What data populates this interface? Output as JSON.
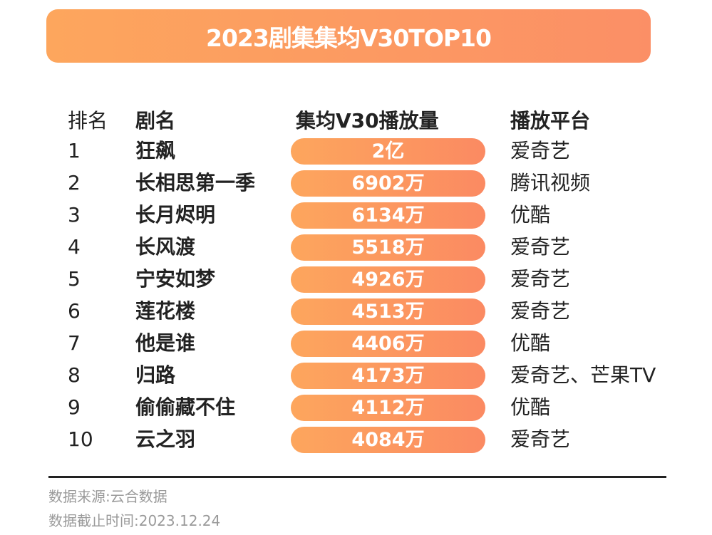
{
  "title": "2023剧集集均V30TOP10",
  "headers": {
    "rank": "排名",
    "name": "剧名",
    "views": "集均V30播放量",
    "platform": "播放平台"
  },
  "chart_data": {
    "type": "table",
    "title": "2023剧集集均V30TOP10",
    "columns": [
      "排名",
      "剧名",
      "集均V30播放量",
      "播放平台"
    ],
    "rows": [
      {
        "rank": "1",
        "name": "狂飙",
        "views": "2亿",
        "platform": "爱奇艺"
      },
      {
        "rank": "2",
        "name": "长相思第一季",
        "views": "6902万",
        "platform": "腾讯视频"
      },
      {
        "rank": "3",
        "name": "长月烬明",
        "views": "6134万",
        "platform": "优酷"
      },
      {
        "rank": "4",
        "name": "长风渡",
        "views": "5518万",
        "platform": "爱奇艺"
      },
      {
        "rank": "5",
        "name": "宁安如梦",
        "views": "4926万",
        "platform": "爱奇艺"
      },
      {
        "rank": "6",
        "name": "莲花楼",
        "views": "4513万",
        "platform": "爱奇艺"
      },
      {
        "rank": "7",
        "name": "他是谁",
        "views": "4406万",
        "platform": "优酷"
      },
      {
        "rank": "8",
        "name": "归路",
        "views": "4173万",
        "platform": "爱奇艺、芒果TV"
      },
      {
        "rank": "9",
        "name": "偷偷藏不住",
        "views": "4112万",
        "platform": "优酷"
      },
      {
        "rank": "10",
        "name": "云之羽",
        "views": "4084万",
        "platform": "爱奇艺"
      }
    ]
  },
  "footer": {
    "source": "数据来源:云合数据",
    "cutoff": "数据截止时间:2023.12.24"
  },
  "colors": {
    "accent_start": "#fda65d",
    "accent_end": "#fb8a62"
  }
}
